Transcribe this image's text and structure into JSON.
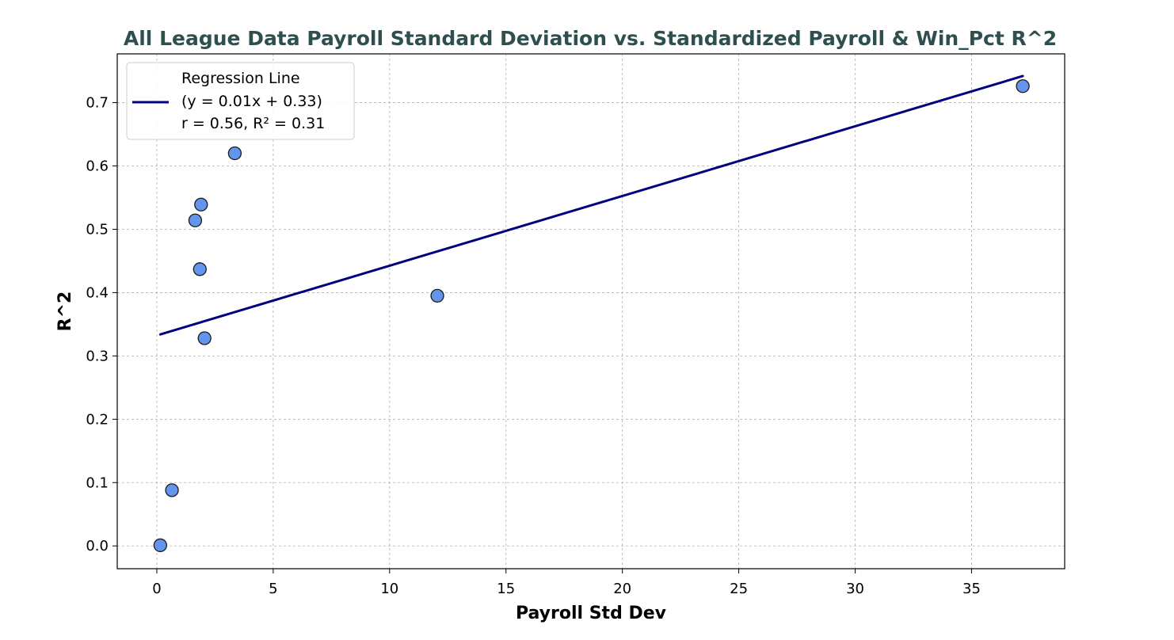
{
  "chart_data": {
    "type": "scatter",
    "title": "All League Data Payroll Standard Deviation vs. Standardized Payroll & Win_Pct R^2",
    "xlabel": "Payroll Std Dev",
    "ylabel": "R^2",
    "xlim": [
      -1.7,
      39.0
    ],
    "ylim": [
      -0.036,
      0.777
    ],
    "x_ticks": [
      0,
      5,
      10,
      15,
      20,
      25,
      30,
      35
    ],
    "y_ticks": [
      0.0,
      0.1,
      0.2,
      0.3,
      0.4,
      0.5,
      0.6,
      0.7
    ],
    "x_tick_labels": [
      "0",
      "5",
      "10",
      "15",
      "20",
      "25",
      "30",
      "35"
    ],
    "y_tick_labels": [
      "0.0",
      "0.1",
      "0.2",
      "0.3",
      "0.4",
      "0.5",
      "0.6",
      "0.7"
    ],
    "grid": true,
    "legend_position": "top-left",
    "points": [
      {
        "x": 0.15,
        "y": 0.001
      },
      {
        "x": 0.65,
        "y": 0.088
      },
      {
        "x": 1.65,
        "y": 0.514
      },
      {
        "x": 1.85,
        "y": 0.437
      },
      {
        "x": 1.9,
        "y": 0.539
      },
      {
        "x": 2.05,
        "y": 0.328
      },
      {
        "x": 3.35,
        "y": 0.62
      },
      {
        "x": 12.05,
        "y": 0.395
      },
      {
        "x": 37.2,
        "y": 0.726
      }
    ],
    "regression_line": {
      "x_start": 0.15,
      "y_start": 0.334,
      "x_end": 37.2,
      "y_end": 0.742
    },
    "legend": {
      "line1": "Regression Line",
      "line2": "(y = 0.01x + 0.33)",
      "line3": "r = 0.56, R² = 0.31"
    },
    "colors": {
      "point_fill": "#6495ed",
      "point_edge": "#1a1a1a",
      "line": "#000080",
      "title": "#2f4f4f"
    }
  }
}
